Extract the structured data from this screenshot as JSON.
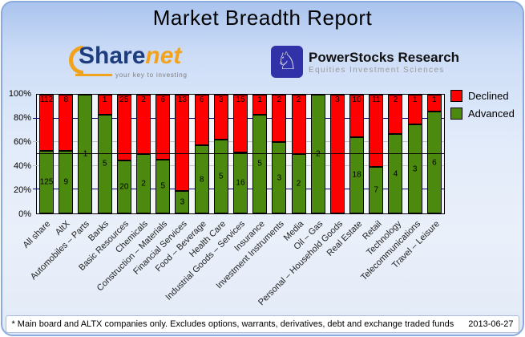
{
  "page": {
    "title": "Market Breadth Report",
    "footer_note": "* Main board and ALTX companies only. Excludes options, warrants, derivatives, debt and exchange traded funds",
    "footer_date": "2013-06-27"
  },
  "logos": {
    "sharenet": {
      "part1": "Share",
      "part2": "net",
      "tagline": "your key to investing",
      "brand_navy": "#1d3d7d",
      "brand_orange": "#f2a31d"
    },
    "powerstocks": {
      "name": "PowerStocks Research",
      "tagline": "Equities Investment Sciences",
      "icon": "knight-chess-icon",
      "brand_blue": "#3232a8"
    }
  },
  "chart_data": {
    "type": "bar",
    "stacked": true,
    "normalized_to_100_percent": true,
    "title": "Market Breadth Report",
    "categories": [
      "All share",
      "AltX",
      "Automobiles – Parts",
      "Banks",
      "Basic Resources",
      "Chemicals",
      "Construction – Materials",
      "Financial Services",
      "Food – Beverage",
      "Health Care",
      "Industrial Goods – Services",
      "Insurance",
      "Investment Instruments",
      "Media",
      "Oil – Gas",
      "Personal – Household Goods",
      "Real Estate",
      "Retail",
      "Technology",
      "Telecommunications",
      "Travel – Leisure"
    ],
    "series": [
      {
        "name": "Declined",
        "color": "#ff0000",
        "values": [
          112,
          8,
          0,
          1,
          25,
          2,
          6,
          13,
          6,
          3,
          15,
          1,
          2,
          2,
          0,
          3,
          10,
          11,
          2,
          1,
          1
        ]
      },
      {
        "name": "Advanced",
        "color": "#4b8a0e",
        "values": [
          125,
          9,
          1,
          5,
          20,
          2,
          5,
          3,
          8,
          5,
          16,
          5,
          3,
          2,
          2,
          0,
          18,
          7,
          4,
          3,
          6
        ]
      }
    ],
    "y_axis": {
      "ticks": [
        "100%",
        "80%",
        "60%",
        "40%",
        "20%",
        "0%"
      ],
      "min": 0,
      "max": 100,
      "unit": "%"
    },
    "gridlines": [
      {
        "percent": 80,
        "color": "#000080",
        "above_bars": false
      },
      {
        "percent": 60,
        "color": "#c0c0c0",
        "above_bars": false
      },
      {
        "percent": 50,
        "color": "#000000",
        "above_bars": true
      },
      {
        "percent": 40,
        "color": "#c0c0c0",
        "above_bars": false
      },
      {
        "percent": 20,
        "color": "#000080",
        "above_bars": false
      }
    ],
    "legend": [
      {
        "label": "Declined",
        "color": "#ff0000"
      },
      {
        "label": "Advanced",
        "color": "#4b8a0e"
      }
    ],
    "legend_position": "right-top"
  }
}
